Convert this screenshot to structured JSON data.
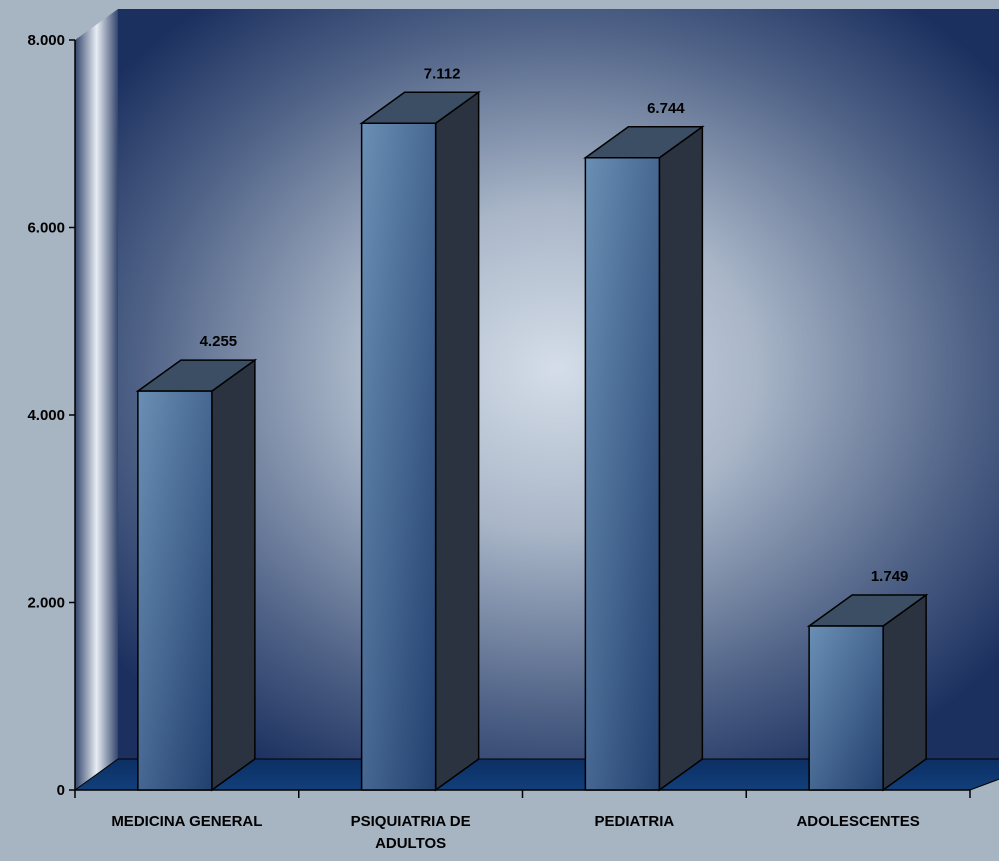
{
  "chart_data": {
    "type": "bar",
    "title": "",
    "xlabel": "",
    "ylabel": "",
    "categories": [
      [
        "MEDICINA GENERAL"
      ],
      [
        "PSIQUIATRIA DE",
        "ADULTOS"
      ],
      [
        "PEDIATRIA"
      ],
      [
        "ADOLESCENTES"
      ]
    ],
    "values": [
      4255,
      7112,
      6744,
      1749
    ],
    "value_labels": [
      "4.255",
      "7.112",
      "6.744",
      "1.749"
    ],
    "ylim": [
      0,
      8000
    ],
    "yticks": [
      0,
      2000,
      4000,
      6000,
      8000
    ],
    "ytick_labels": [
      "0",
      "2.000",
      "4.000",
      "6.000",
      "8.000"
    ],
    "grid": false,
    "legend": "none",
    "three_d": true,
    "colors": {
      "page_background": "#a7b4c2",
      "wall_dark": "#1c3060",
      "wall_light": "#d4dde8",
      "floor": "#0f3a72",
      "bar_front_left": "#6a8fb4",
      "bar_front_right": "#22406e",
      "bar_top": "#3b4e63",
      "bar_side": "#2b3340",
      "outline": "#000000"
    }
  }
}
